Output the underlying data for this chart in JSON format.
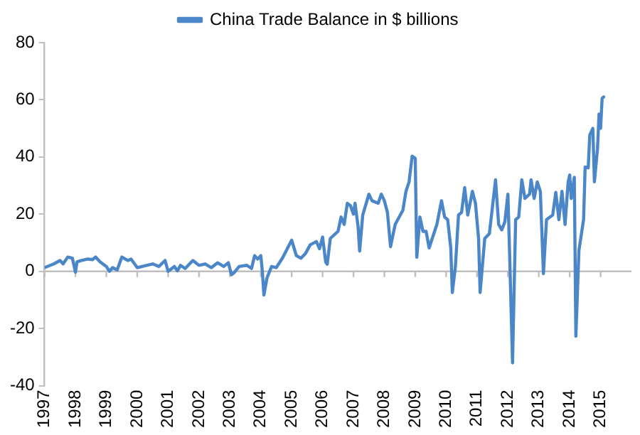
{
  "chart_data": {
    "type": "line",
    "legend": "top",
    "grid": false,
    "marker": "none",
    "line_style": "solid",
    "xlim": [
      1997,
      2016
    ],
    "xticks": [
      1997,
      1998,
      1999,
      2000,
      2001,
      2002,
      2003,
      2004,
      2005,
      2006,
      2007,
      2008,
      2009,
      2010,
      2011,
      2012,
      2013,
      2014,
      2015
    ],
    "ylim": [
      -40,
      80
    ],
    "yticks": [
      -40,
      -20,
      0,
      20,
      40,
      60,
      80
    ],
    "ref_lines": [
      {
        "axis": "y",
        "value": 0,
        "color": "#bfbfbf"
      }
    ],
    "series": [
      {
        "name": "China Trade Balance in $ billions",
        "color": "#4a86c8",
        "x": [
          1997.0,
          1997.3,
          1997.5,
          1997.6,
          1997.75,
          1997.9,
          1998.0,
          1998.05,
          1998.2,
          1998.4,
          1998.55,
          1998.65,
          1998.8,
          1999.0,
          1999.1,
          1999.2,
          1999.35,
          1999.5,
          1999.7,
          1999.8,
          2000.0,
          2000.3,
          2000.5,
          2000.7,
          2000.9,
          2001.0,
          2001.2,
          2001.3,
          2001.4,
          2001.55,
          2001.8,
          2002.0,
          2002.2,
          2002.4,
          2002.6,
          2002.8,
          2002.95,
          2003.05,
          2003.15,
          2003.3,
          2003.55,
          2003.7,
          2003.8,
          2003.9,
          2004.0,
          2004.05,
          2004.1,
          2004.2,
          2004.35,
          2004.5,
          2004.7,
          2004.9,
          2005.0,
          2005.15,
          2005.3,
          2005.45,
          2005.6,
          2005.8,
          2005.9,
          2006.0,
          2006.1,
          2006.15,
          2006.25,
          2006.5,
          2006.6,
          2006.7,
          2006.8,
          2006.9,
          2007.0,
          2007.05,
          2007.15,
          2007.2,
          2007.3,
          2007.5,
          2007.6,
          2007.8,
          2007.9,
          2008.0,
          2008.1,
          2008.2,
          2008.35,
          2008.6,
          2008.7,
          2008.8,
          2008.9,
          2009.0,
          2009.05,
          2009.15,
          2009.25,
          2009.35,
          2009.45,
          2009.7,
          2009.85,
          2009.95,
          2010.05,
          2010.15,
          2010.2,
          2010.3,
          2010.4,
          2010.5,
          2010.6,
          2010.7,
          2010.85,
          2010.95,
          2011.05,
          2011.1,
          2011.25,
          2011.4,
          2011.6,
          2011.7,
          2011.8,
          2011.9,
          2012.0,
          2012.05,
          2012.15,
          2012.25,
          2012.35,
          2012.45,
          2012.55,
          2012.7,
          2012.75,
          2012.85,
          2012.95,
          2013.05,
          2013.15,
          2013.25,
          2013.45,
          2013.55,
          2013.65,
          2013.75,
          2013.85,
          2013.95,
          2014.0,
          2014.05,
          2014.15,
          2014.2,
          2014.3,
          2014.45,
          2014.5,
          2014.6,
          2014.65,
          2014.75,
          2014.8,
          2014.9,
          2014.95,
          2015.0,
          2015.05,
          2015.1
        ],
        "values": [
          1.3,
          2.6,
          3.8,
          2.6,
          5,
          4.6,
          -0.3,
          3.3,
          3.8,
          4.3,
          4.1,
          5,
          3.3,
          1.7,
          0,
          1.3,
          0.5,
          5,
          3.8,
          4.3,
          1.3,
          2.1,
          2.6,
          1.7,
          3.8,
          0,
          1.7,
          0.2,
          2.1,
          1,
          3.8,
          2.1,
          2.6,
          1.3,
          3,
          1.7,
          3,
          -1.2,
          -0.3,
          1.7,
          2.1,
          1,
          5.5,
          4.3,
          5.5,
          0,
          -8.3,
          -2.3,
          1.7,
          1.3,
          4.6,
          8.8,
          10.9,
          5.5,
          4.6,
          6.3,
          9.3,
          10.4,
          7.9,
          12,
          3.3,
          2.5,
          11.5,
          14,
          19,
          16.4,
          23.8,
          23,
          20,
          23.8,
          15.6,
          7.1,
          19.7,
          27,
          24.7,
          23.8,
          27,
          24.7,
          20.6,
          8.6,
          16.4,
          21.4,
          28,
          31.3,
          40.3,
          39.5,
          4.9,
          19,
          14,
          14,
          8.2,
          16.4,
          24.7,
          19,
          18.1,
          8.2,
          -7.4,
          1.6,
          19.7,
          20.6,
          29.3,
          19.7,
          28,
          23.8,
          11.5,
          -7.4,
          11.5,
          13.2,
          32,
          16.4,
          14.5,
          17.3,
          27,
          8.2,
          -32,
          18.1,
          19,
          32,
          25.5,
          27,
          32,
          25.5,
          31.3,
          28,
          -0.8,
          18.1,
          19.7,
          27.6,
          18.1,
          28,
          16.4,
          31.3,
          33.7,
          25.5,
          32.9,
          -22.7,
          7.4,
          18.1,
          36.5,
          36.2,
          47.7,
          50,
          31.3,
          42.8,
          55,
          50,
          60.5,
          61
        ]
      }
    ]
  }
}
